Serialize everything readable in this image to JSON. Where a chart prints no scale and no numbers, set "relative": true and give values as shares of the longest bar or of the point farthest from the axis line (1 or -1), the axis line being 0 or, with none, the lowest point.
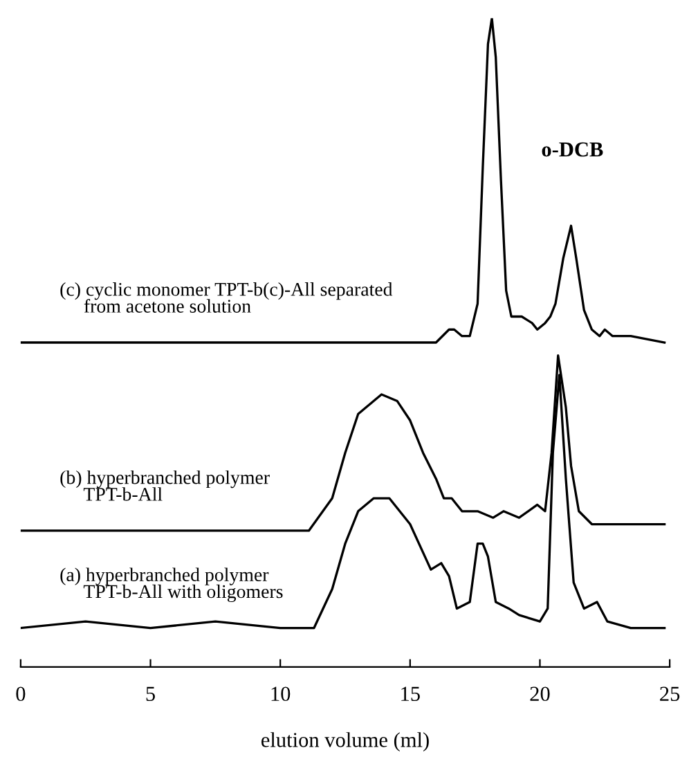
{
  "chart_data": {
    "type": "line",
    "relative": true,
    "xlabel": "elution volume (ml)",
    "xlim": [
      0,
      25
    ],
    "xticks": [
      0,
      5,
      10,
      15,
      20,
      25
    ],
    "grid": false,
    "legend": false,
    "marker": "none",
    "line_style": "solid",
    "annotations": [
      "o-DCB"
    ],
    "series": [
      {
        "name": "(c) cyclic monomer TPT-b(c)-All separated\n     from acetone solution",
        "color": "#000000",
        "x": [
          0,
          5,
          10,
          15,
          16.0,
          16.5,
          16.7,
          17.0,
          17.3,
          17.6,
          17.8,
          18.0,
          18.15,
          18.3,
          18.5,
          18.7,
          18.9,
          19.3,
          19.7,
          19.9,
          20.2,
          20.4,
          20.6,
          20.9,
          21.2,
          21.4,
          21.7,
          22.0,
          22.3,
          22.5,
          22.8,
          23.5,
          24.8
        ],
        "values": [
          0.5,
          0.5,
          0.5,
          0.5,
          0.5,
          0.52,
          0.52,
          0.51,
          0.51,
          0.56,
          0.77,
          0.96,
          1,
          0.94,
          0.75,
          0.58,
          0.54,
          0.54,
          0.53,
          0.52,
          0.53,
          0.54,
          0.56,
          0.63,
          0.68,
          0.63,
          0.55,
          0.52,
          0.51,
          0.52,
          0.51,
          0.51,
          0.5
        ]
      },
      {
        "name": "(b) hyperbranched polymer\n     TPT-b-All",
        "color": "#000000",
        "x": [
          0,
          5,
          10,
          11.1,
          12,
          12.5,
          13,
          13.9,
          14.5,
          15,
          15.5,
          16,
          16.3,
          16.6,
          17,
          17.6,
          18.2,
          18.6,
          19.2,
          19.9,
          20.2,
          20.45,
          20.7,
          21.0,
          21.2,
          21.5,
          22,
          23,
          24.8
        ],
        "values": [
          0.21,
          0.21,
          0.21,
          0.21,
          0.26,
          0.33,
          0.39,
          0.42,
          0.41,
          0.38,
          0.33,
          0.29,
          0.26,
          0.26,
          0.24,
          0.24,
          0.23,
          0.24,
          0.23,
          0.25,
          0.24,
          0.33,
          0.48,
          0.4,
          0.31,
          0.24,
          0.22,
          0.22,
          0.22
        ]
      },
      {
        "name": "(a) hyperbranched polymer\n     TPT-b-All with oligomers",
        "color": "#000000",
        "x": [
          0,
          2.5,
          5,
          7.5,
          10,
          11.3,
          12,
          12.5,
          13,
          13.6,
          14.2,
          15,
          15.8,
          16.2,
          16.5,
          16.8,
          17.3,
          17.6,
          17.8,
          18.0,
          18.3,
          18.8,
          19.2,
          20,
          20.3,
          20.5,
          20.75,
          21.0,
          21.3,
          21.7,
          22.2,
          22.6,
          23.5,
          24.8
        ],
        "values": [
          0.06,
          0.07,
          0.06,
          0.07,
          0.06,
          0.06,
          0.12,
          0.19,
          0.24,
          0.26,
          0.26,
          0.22,
          0.15,
          0.16,
          0.14,
          0.09,
          0.1,
          0.19,
          0.19,
          0.17,
          0.1,
          0.09,
          0.08,
          0.07,
          0.09,
          0.33,
          0.45,
          0.29,
          0.13,
          0.09,
          0.1,
          0.07,
          0.06,
          0.06
        ]
      }
    ]
  }
}
